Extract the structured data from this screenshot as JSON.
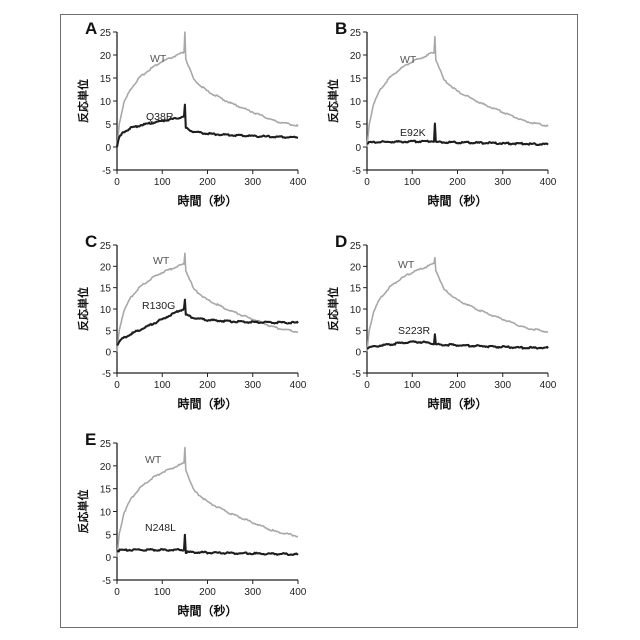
{
  "chart_data": [
    {
      "panel_letter": "A",
      "type": "line",
      "xlabel": "時間（秒）",
      "ylabel": "反応単位",
      "xlim": [
        0,
        400
      ],
      "ylim": [
        -5,
        25
      ],
      "xticks": [
        0,
        100,
        200,
        300,
        400
      ],
      "yticks": [
        -5,
        0,
        5,
        10,
        15,
        20,
        25
      ],
      "series": [
        {
          "name": "WT",
          "color": "#a8a8a8",
          "x": [
            0,
            5,
            15,
            30,
            50,
            75,
            100,
            125,
            148,
            150,
            152,
            170,
            200,
            250,
            300,
            350,
            400
          ],
          "y": [
            0,
            5,
            9.5,
            12.5,
            15,
            17,
            18.5,
            19.5,
            20.5,
            25,
            19,
            14.5,
            12,
            9.5,
            7.5,
            5.5,
            4.5
          ]
        },
        {
          "name": "Q38R",
          "color": "#1e1e1e",
          "x": [
            0,
            5,
            15,
            30,
            50,
            75,
            100,
            125,
            148,
            150,
            152,
            170,
            200,
            250,
            300,
            350,
            400
          ],
          "y": [
            0,
            2,
            3.2,
            4,
            4.6,
            5.1,
            5.6,
            6,
            6.5,
            9,
            4,
            3.2,
            2.8,
            2.5,
            2.3,
            2.1,
            2
          ]
        }
      ]
    },
    {
      "panel_letter": "B",
      "type": "line",
      "xlabel": "時間（秒）",
      "ylabel": "反応単位",
      "xlim": [
        0,
        400
      ],
      "ylim": [
        -5,
        25
      ],
      "xticks": [
        0,
        100,
        200,
        300,
        400
      ],
      "yticks": [
        -5,
        0,
        5,
        10,
        15,
        20,
        25
      ],
      "series": [
        {
          "name": "WT",
          "color": "#a8a8a8",
          "x": [
            0,
            5,
            15,
            30,
            50,
            75,
            100,
            125,
            148,
            150,
            152,
            170,
            200,
            250,
            300,
            350,
            400
          ],
          "y": [
            0,
            5,
            9.5,
            12.5,
            15,
            17,
            18.5,
            19.5,
            20.5,
            24,
            19,
            14.5,
            12,
            9.5,
            7.5,
            5.5,
            4.5
          ]
        },
        {
          "name": "E92K",
          "color": "#1e1e1e",
          "x": [
            0,
            20,
            50,
            100,
            148,
            150,
            152,
            200,
            250,
            300,
            350,
            400
          ],
          "y": [
            0.8,
            1,
            1,
            1.1,
            1.2,
            5,
            1,
            0.9,
            0.8,
            0.7,
            0.6,
            0.5
          ]
        }
      ]
    },
    {
      "panel_letter": "C",
      "type": "line",
      "xlabel": "時間（秒）",
      "ylabel": "反応単位",
      "xlim": [
        0,
        400
      ],
      "ylim": [
        -5,
        25
      ],
      "xticks": [
        0,
        100,
        200,
        300,
        400
      ],
      "yticks": [
        -5,
        0,
        5,
        10,
        15,
        20,
        25
      ],
      "series": [
        {
          "name": "WT",
          "color": "#a8a8a8",
          "x": [
            0,
            5,
            15,
            30,
            50,
            75,
            100,
            125,
            148,
            150,
            152,
            170,
            200,
            250,
            300,
            350,
            400
          ],
          "y": [
            0,
            5,
            9.5,
            12.5,
            15,
            17,
            18.5,
            19.5,
            20.5,
            23,
            19,
            14.5,
            12,
            9.5,
            7.5,
            5.5,
            4.5
          ]
        },
        {
          "name": "R130G",
          "color": "#1e1e1e",
          "x": [
            0,
            10,
            30,
            50,
            75,
            100,
            125,
            148,
            150,
            152,
            170,
            200,
            250,
            300,
            350,
            400
          ],
          "y": [
            1.5,
            2.8,
            4,
            5,
            6.2,
            7.5,
            8.8,
            10,
            12,
            8.5,
            7.8,
            7.3,
            7,
            6.8,
            6.7,
            6.7
          ]
        }
      ]
    },
    {
      "panel_letter": "D",
      "type": "line",
      "xlabel": "時間（秒）",
      "ylabel": "反応単位",
      "xlim": [
        0,
        400
      ],
      "ylim": [
        -5,
        25
      ],
      "xticks": [
        0,
        100,
        200,
        300,
        400
      ],
      "yticks": [
        -5,
        0,
        5,
        10,
        15,
        20,
        25
      ],
      "series": [
        {
          "name": "WT",
          "color": "#a8a8a8",
          "x": [
            0,
            5,
            15,
            30,
            50,
            75,
            100,
            125,
            148,
            150,
            152,
            170,
            200,
            250,
            300,
            350,
            400
          ],
          "y": [
            0,
            5,
            9.5,
            12.5,
            15,
            17,
            18.5,
            19.5,
            20.5,
            22,
            19,
            14.5,
            12,
            9.5,
            7.5,
            5.5,
            4.5
          ]
        },
        {
          "name": "S223R",
          "color": "#1e1e1e",
          "x": [
            0,
            20,
            50,
            80,
            100,
            125,
            148,
            150,
            152,
            200,
            250,
            300,
            350,
            400
          ],
          "y": [
            0.8,
            1.2,
            1.6,
            2,
            2.2,
            2.1,
            1.8,
            4,
            1.6,
            1.4,
            1.2,
            1,
            0.8,
            0.8
          ]
        }
      ]
    },
    {
      "panel_letter": "E",
      "type": "line",
      "xlabel": "時間（秒）",
      "ylabel": "反応単位",
      "xlim": [
        0,
        400
      ],
      "ylim": [
        -5,
        25
      ],
      "xticks": [
        0,
        100,
        200,
        300,
        400
      ],
      "yticks": [
        -5,
        0,
        5,
        10,
        15,
        20,
        25
      ],
      "series": [
        {
          "name": "WT",
          "color": "#a8a8a8",
          "x": [
            0,
            5,
            15,
            30,
            50,
            75,
            100,
            125,
            148,
            150,
            152,
            170,
            200,
            250,
            300,
            350,
            400
          ],
          "y": [
            0,
            5,
            9.5,
            12.5,
            15,
            17,
            18.5,
            19.5,
            20.5,
            24,
            19,
            14.5,
            12,
            9.5,
            7.5,
            5.5,
            4.5
          ]
        },
        {
          "name": "N248L",
          "color": "#1e1e1e",
          "x": [
            0,
            20,
            50,
            100,
            148,
            150,
            152,
            200,
            250,
            300,
            350,
            400
          ],
          "y": [
            1.3,
            1.5,
            1.5,
            1.5,
            1.5,
            5,
            1,
            0.9,
            0.8,
            0.7,
            0.6,
            0.5
          ]
        }
      ]
    }
  ]
}
